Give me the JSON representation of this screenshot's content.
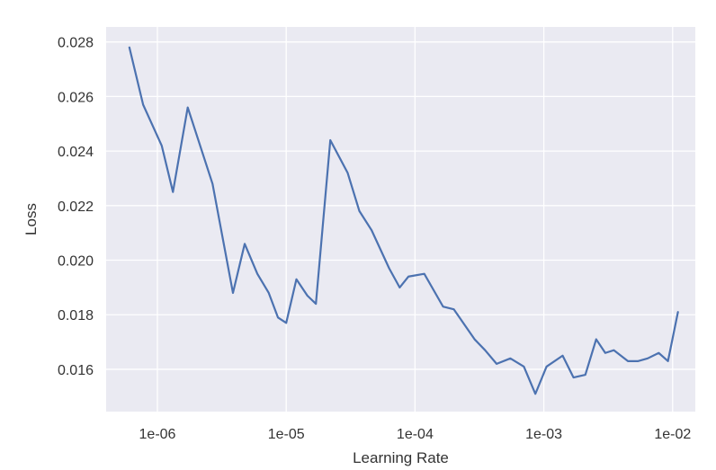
{
  "chart_data": {
    "type": "line",
    "xlabel": "Learning Rate",
    "ylabel": "Loss",
    "x_scale": "log",
    "xlim": [
      4e-07,
      0.015
    ],
    "ylim": [
      0.01445,
      0.02855
    ],
    "grid": true,
    "x_ticks": [
      {
        "value": 1e-06,
        "label": "1e-06"
      },
      {
        "value": 1e-05,
        "label": "1e-05"
      },
      {
        "value": 0.0001,
        "label": "1e-04"
      },
      {
        "value": 0.001,
        "label": "1e-03"
      },
      {
        "value": 0.01,
        "label": "1e-02"
      }
    ],
    "y_ticks": [
      {
        "value": 0.016,
        "label": "0.016"
      },
      {
        "value": 0.018,
        "label": "0.018"
      },
      {
        "value": 0.02,
        "label": "0.020"
      },
      {
        "value": 0.022,
        "label": "0.022"
      },
      {
        "value": 0.024,
        "label": "0.024"
      },
      {
        "value": 0.026,
        "label": "0.026"
      },
      {
        "value": 0.028,
        "label": "0.028"
      }
    ],
    "series": [
      {
        "color": "#4c72b0",
        "x": [
          6.06e-07,
          7.75e-07,
          1.08e-06,
          1.32e-06,
          1.72e-06,
          2.68e-06,
          3.86e-06,
          4.76e-06,
          5.97e-06,
          7.32e-06,
          8.63e-06,
          1e-05,
          1.2e-05,
          1.46e-05,
          1.7e-05,
          2.2e-05,
          3e-05,
          3.7e-05,
          4.6e-05,
          6.3e-05,
          7.6e-05,
          8.9e-05,
          0.000118,
          0.000165,
          0.0002,
          0.000245,
          0.00029,
          0.00035,
          0.00043,
          0.00055,
          0.0007,
          0.00086,
          0.00105,
          0.0014,
          0.0017,
          0.0021,
          0.00255,
          0.003,
          0.0035,
          0.0045,
          0.0054,
          0.0064,
          0.0078,
          0.0092,
          0.011
        ],
        "y": [
          0.0278,
          0.0257,
          0.0242,
          0.0225,
          0.0256,
          0.0228,
          0.0188,
          0.0206,
          0.0195,
          0.0188,
          0.0179,
          0.0177,
          0.0193,
          0.0187,
          0.0184,
          0.0244,
          0.0232,
          0.0218,
          0.0211,
          0.0197,
          0.019,
          0.0194,
          0.0195,
          0.0183,
          0.0182,
          0.0176,
          0.0171,
          0.0167,
          0.0162,
          0.0164,
          0.0161,
          0.0151,
          0.0161,
          0.0165,
          0.0157,
          0.0158,
          0.0171,
          0.0166,
          0.0167,
          0.0163,
          0.0163,
          0.0164,
          0.0166,
          0.0163,
          0.0181
        ]
      }
    ]
  }
}
